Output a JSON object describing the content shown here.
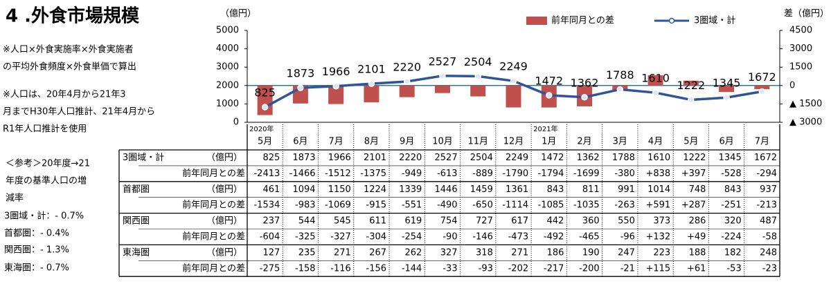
{
  "title": "4 .外食市場規模",
  "notes": [
    "※人口×外食実施率×外食実施者",
    "の平均外食頻度×外食単価で算出",
    "※人口は、20年4月から21年3",
    "月までH30年人口推計、21年4月から",
    "R1年人口推計を使用",
    "＜参考＞20年度→21",
    "年度の基準人口の増",
    "減率",
    "3圏域・計：- 0.7%",
    "首都圏：- 0.4%",
    "関西圏：- 1.3%",
    "東海圏：- 0.7%"
  ],
  "chart_data": {
    "type": "bar_line",
    "y_label": "（億円）",
    "y2_label": "差（億円）",
    "categories": [
      "5月",
      "6月",
      "7月",
      "8月",
      "9月",
      "10月",
      "11月",
      "12月",
      "1月",
      "2月",
      "3月",
      "4月",
      "5月",
      "6月",
      "7月"
    ],
    "x_groups": [
      {
        "label": "2020年",
        "start": 0
      },
      {
        "label": "2021年",
        "start": 8
      }
    ],
    "ylim": [
      0,
      5000
    ],
    "yticks": [
      0,
      1000,
      2000,
      3000,
      4000,
      5000
    ],
    "y2lim": [
      -3000,
      4500
    ],
    "y2ticks": [
      4500,
      3000,
      1500,
      0,
      {
        "value": -1500,
        "label": "▲ 1500"
      },
      {
        "value": -3000,
        "label": "▲ 3000"
      }
    ],
    "legend": "top-right",
    "series": [
      {
        "name": "前年同月との差",
        "type": "bar",
        "axis": "y2",
        "color": "#c0504d",
        "values": [
          -2413,
          -1466,
          -1512,
          -1375,
          -949,
          -613,
          -889,
          -1790,
          -1794,
          -1699,
          -380,
          838,
          397,
          -528,
          -294
        ],
        "value_labels": [
          "-2413",
          "-1466",
          "-1512",
          "-1375",
          "-949",
          "-613",
          "-889",
          "-1790",
          "-1794",
          "-1699",
          "-380",
          "+838",
          "+397",
          "-528",
          "-294"
        ]
      },
      {
        "name": "3圏域・計",
        "type": "line",
        "color": "#2f5597",
        "values": [
          825,
          1873,
          1966,
          2101,
          2220,
          2527,
          2504,
          2249,
          1472,
          1362,
          1788,
          1610,
          1222,
          1345,
          1672
        ]
      }
    ]
  },
  "table": {
    "unit": "（億円）",
    "diff_label": "前年同月との差",
    "regions": [
      {
        "name": "3圏域・計"
      },
      {
        "name": "首都圏",
        "values": [
          461,
          1094,
          1150,
          1224,
          1339,
          1446,
          1459,
          1361,
          843,
          811,
          991,
          1014,
          748,
          843,
          937
        ],
        "diffs": [
          "-1534",
          "-983",
          "-1069",
          "-915",
          "-551",
          "-490",
          "-650",
          "-1114",
          "-1085",
          "-1035",
          "-263",
          "+591",
          "+287",
          "-251",
          "-213"
        ]
      },
      {
        "name": "関西圏",
        "values": [
          237,
          544,
          545,
          611,
          619,
          754,
          727,
          617,
          442,
          360,
          550,
          373,
          286,
          320,
          487
        ],
        "diffs": [
          "-604",
          "-325",
          "-327",
          "-304",
          "-254",
          "-90",
          "-146",
          "-473",
          "-492",
          "-465",
          "-96",
          "+132",
          "+49",
          "-224",
          "-58"
        ]
      },
      {
        "name": "東海圏",
        "values": [
          127,
          235,
          271,
          267,
          262,
          327,
          318,
          271,
          186,
          190,
          247,
          223,
          188,
          182,
          248
        ],
        "diffs": [
          "-275",
          "-158",
          "-116",
          "-156",
          "-144",
          "-33",
          "-93",
          "-202",
          "-217",
          "-200",
          "-21",
          "+115",
          "+61",
          "-53",
          "-23"
        ]
      }
    ]
  }
}
